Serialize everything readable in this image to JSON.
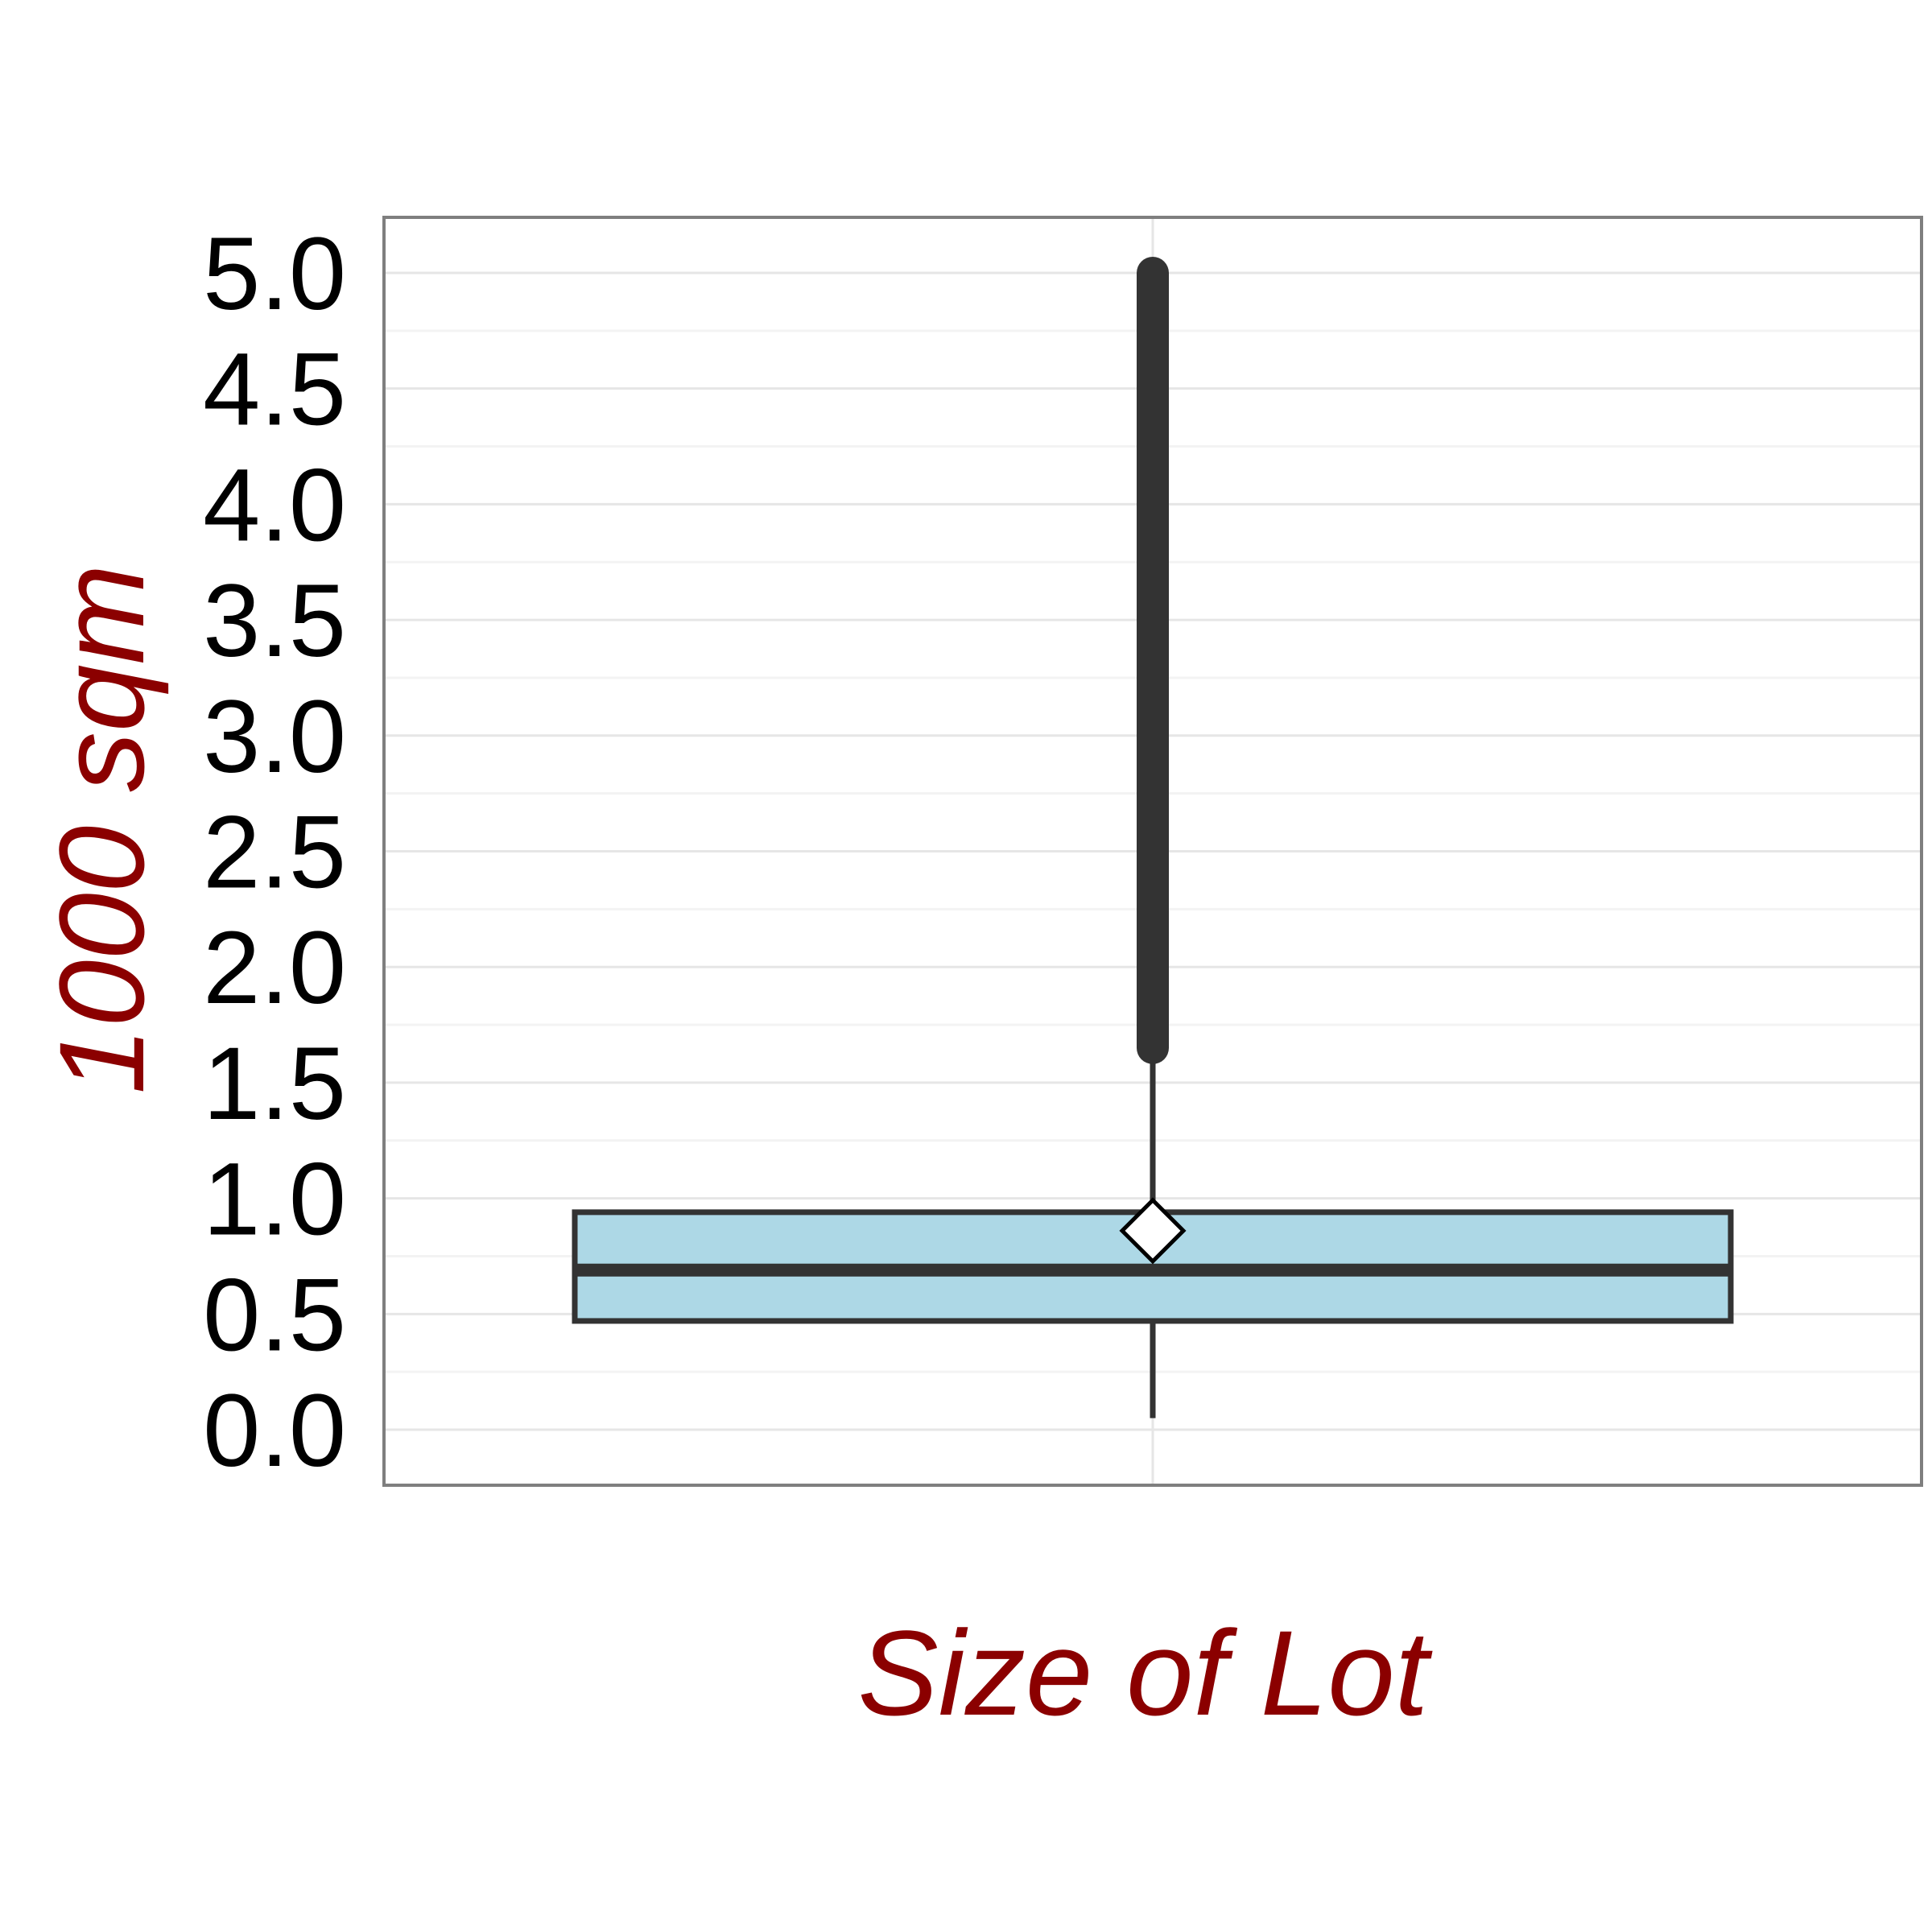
{
  "chart_data": {
    "type": "boxplot",
    "xlabel": "Size of Lot",
    "ylabel": "1000 sqm",
    "ylim": [
      -0.24,
      5.24
    ],
    "yticks": [
      "0.0",
      "0.5",
      "1.0",
      "1.5",
      "2.0",
      "2.5",
      "3.0",
      "3.5",
      "4.0",
      "4.5",
      "5.0"
    ],
    "grid": true,
    "box": {
      "whisker_low": 0.05,
      "q1": 0.47,
      "median": 0.69,
      "q3": 0.94,
      "whisker_high": 1.6,
      "mean": 0.86,
      "outliers_min": 1.65,
      "outliers_max": 5.0
    },
    "colors": {
      "box_fill": "#add8e6",
      "box_line": "#333333",
      "outliers": "#333333",
      "title_color": "#8b0000",
      "grid": "#e6e6e6",
      "panel_border": "#7f7f7f"
    }
  }
}
